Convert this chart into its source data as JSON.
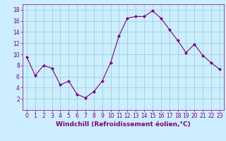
{
  "x": [
    0,
    1,
    2,
    3,
    4,
    5,
    6,
    7,
    8,
    9,
    10,
    11,
    12,
    13,
    14,
    15,
    16,
    17,
    18,
    19,
    20,
    21,
    22,
    23
  ],
  "y": [
    9.5,
    6.2,
    8.0,
    7.5,
    4.5,
    5.2,
    2.8,
    2.2,
    3.3,
    5.2,
    8.5,
    13.3,
    16.5,
    16.8,
    16.8,
    17.8,
    16.5,
    14.5,
    12.5,
    10.3,
    11.8,
    9.8,
    8.5,
    7.3
  ],
  "line_color": "#800080",
  "marker": "D",
  "marker_size": 2.0,
  "bg_color": "#cceeff",
  "grid_color": "#99cccc",
  "xlabel": "Windchill (Refroidissement éolien,°C)",
  "xlabel_color": "#800080",
  "tick_color": "#800080",
  "xlim": [
    -0.5,
    23.5
  ],
  "ylim": [
    0,
    19
  ],
  "yticks": [
    2,
    4,
    6,
    8,
    10,
    12,
    14,
    16,
    18
  ],
  "xticks": [
    0,
    1,
    2,
    3,
    4,
    5,
    6,
    7,
    8,
    9,
    10,
    11,
    12,
    13,
    14,
    15,
    16,
    17,
    18,
    19,
    20,
    21,
    22,
    23
  ],
  "tick_fontsize": 5.5,
  "xlabel_fontsize": 6.5
}
